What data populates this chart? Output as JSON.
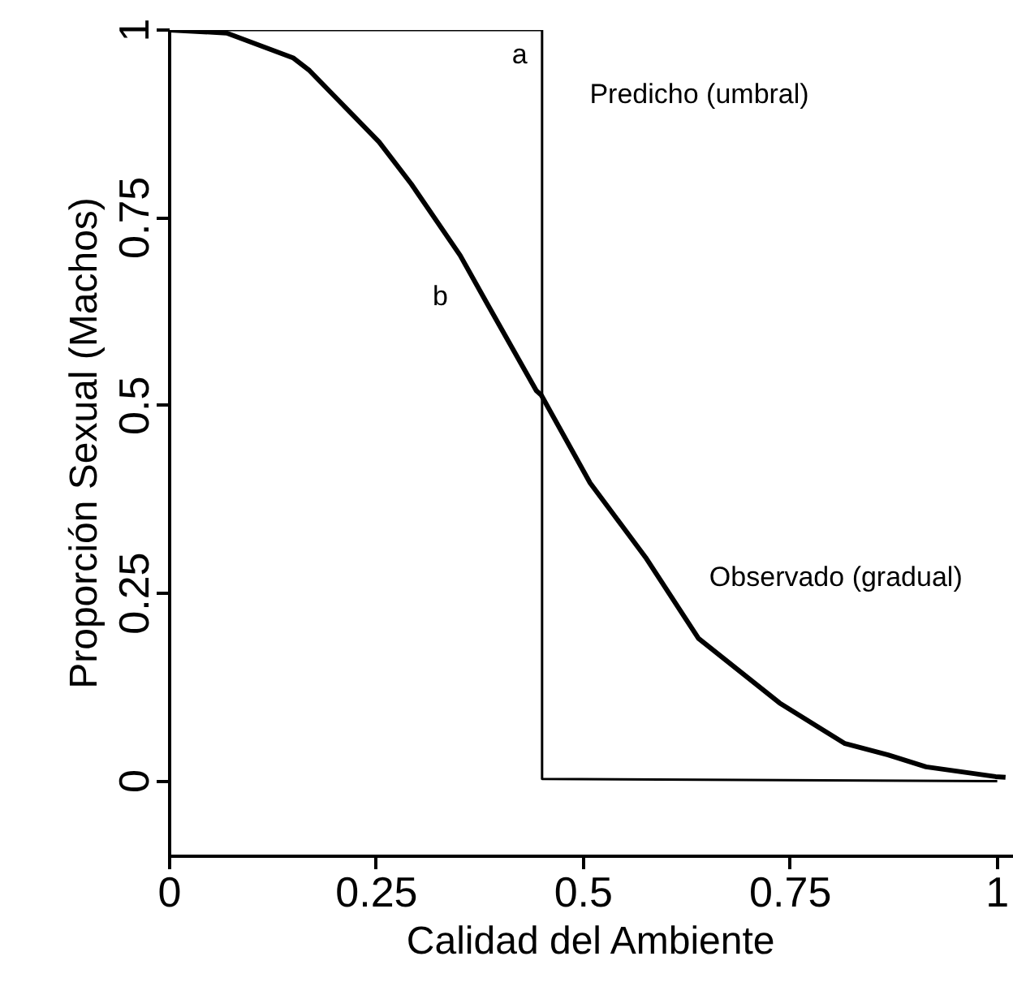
{
  "chart_data": {
    "type": "line",
    "xlabel": "Calidad del Ambiente",
    "ylabel": "Proporción Sexual (Machos)",
    "xlim": [
      0,
      1.02
    ],
    "ylim": [
      -0.1,
      1.0
    ],
    "xticks": [
      0,
      0.25,
      0.5,
      0.75,
      1
    ],
    "yticks": [
      0,
      0.25,
      0.5,
      0.75,
      1
    ],
    "grid": false,
    "series": [
      {
        "color": "#000000",
        "x": [
          0,
          0.45,
          0.45,
          1.0
        ],
        "values": [
          1,
          1,
          0.003,
          0
        ]
      },
      {
        "color": "#000000",
        "x": [
          0,
          0.069,
          0.149,
          0.169,
          0.253,
          0.292,
          0.351,
          0.384,
          0.443,
          0.449,
          0.508,
          0.575,
          0.639,
          0.737,
          0.816,
          0.868,
          0.914,
          0.998,
          1.01
        ],
        "values": [
          1,
          0.996,
          0.963,
          0.946,
          0.851,
          0.795,
          0.7,
          0.635,
          0.52,
          0.514,
          0.397,
          0.298,
          0.19,
          0.104,
          0.05,
          0.035,
          0.019,
          0.006,
          0.005
        ]
      }
    ],
    "annotations": [
      "a",
      "b",
      "Predicho (umbral)",
      "Observado (gradual)"
    ]
  }
}
